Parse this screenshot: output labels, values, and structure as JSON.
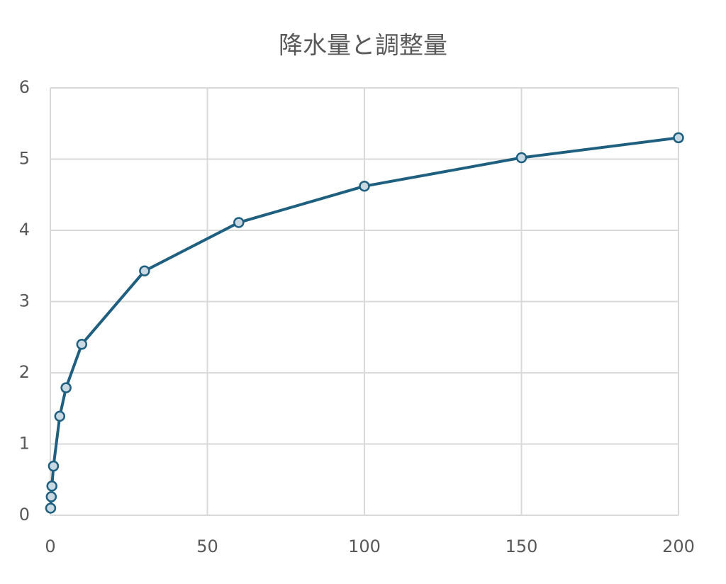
{
  "chart_data": {
    "type": "line",
    "title": "降水量と調整量",
    "x": [
      0.1,
      0.3,
      0.5,
      1,
      3,
      5,
      10,
      30,
      60,
      100,
      150,
      200
    ],
    "values": [
      0.1,
      0.26,
      0.41,
      0.69,
      1.39,
      1.79,
      2.4,
      3.43,
      4.11,
      4.62,
      5.02,
      5.3
    ],
    "color": "#1f5f7f",
    "marker_fill": "#c9d9e3",
    "xlim": [
      0,
      200
    ],
    "xticks": [
      0,
      50,
      100,
      150,
      200
    ],
    "ylim": [
      0,
      6
    ],
    "yticks": [
      0,
      1,
      2,
      3,
      4,
      5,
      6
    ],
    "grid": true
  }
}
